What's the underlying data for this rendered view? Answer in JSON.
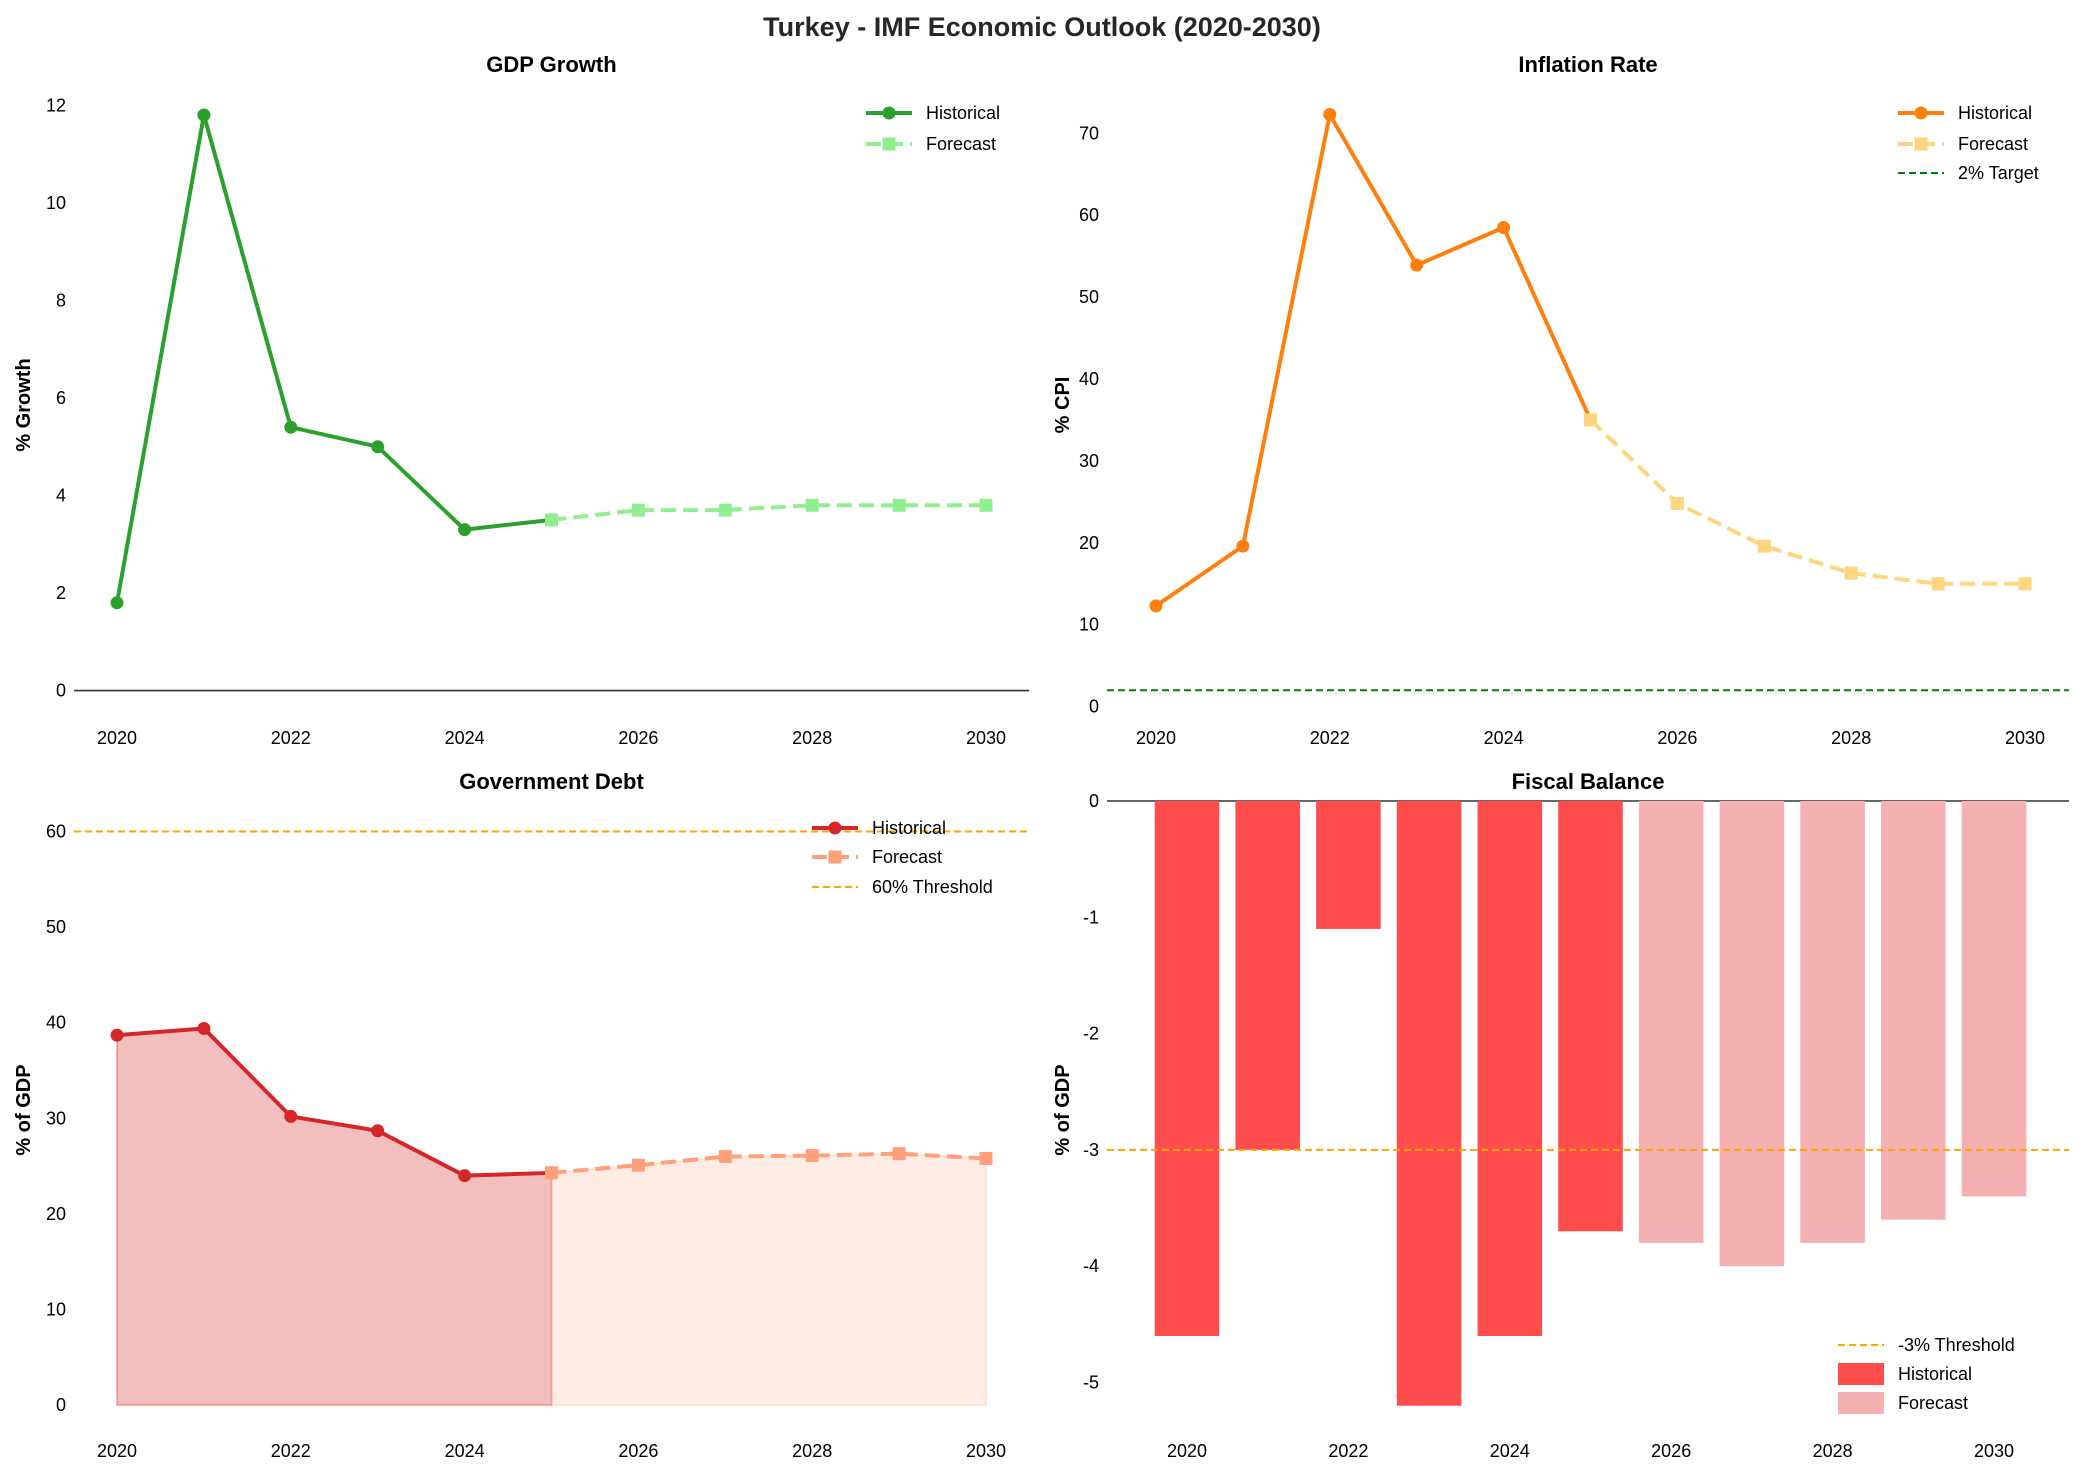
{
  "suptitle": "Turkey - IMF Economic Outlook (2020-2030)",
  "chart_data": [
    {
      "type": "line",
      "title": "GDP Growth",
      "xlabel": "",
      "ylabel": "% Growth",
      "xlim": [
        2019.5,
        2030.5
      ],
      "ylim": [
        -0.5,
        12.6
      ],
      "xticks": [
        2020,
        2022,
        2024,
        2026,
        2028,
        2030
      ],
      "yticks": [
        0,
        2,
        4,
        6,
        8,
        10,
        12
      ],
      "grid": false,
      "legend": "top-right",
      "zero_line": true,
      "series": [
        {
          "name": "Historical",
          "style": "solid-circle",
          "color": "#2ca02c",
          "x": [
            2020,
            2021,
            2022,
            2023,
            2024,
            2025
          ],
          "values": [
            1.8,
            11.8,
            5.4,
            5.0,
            3.3,
            3.5
          ]
        },
        {
          "name": "Forecast",
          "style": "dashed-square",
          "color": "#90ee90",
          "x": [
            2025,
            2026,
            2027,
            2028,
            2029,
            2030
          ],
          "values": [
            3.5,
            3.7,
            3.7,
            3.8,
            3.8,
            3.8
          ]
        }
      ],
      "reference_lines": []
    },
    {
      "type": "line",
      "title": "Inflation Rate",
      "xlabel": "",
      "ylabel": "% CPI",
      "xlim": [
        2019.5,
        2030.5
      ],
      "ylim": [
        -2,
        77
      ],
      "xticks": [
        2020,
        2022,
        2024,
        2026,
        2028,
        2030
      ],
      "yticks": [
        0,
        10,
        20,
        30,
        40,
        50,
        60,
        70
      ],
      "grid": false,
      "legend": "top-right",
      "zero_line": false,
      "series": [
        {
          "name": "Historical",
          "style": "solid-circle",
          "color": "#ff7f0e",
          "x": [
            2020,
            2021,
            2022,
            2023,
            2024,
            2025
          ],
          "values": [
            12.3,
            19.6,
            72.3,
            53.9,
            58.5,
            35.0
          ]
        },
        {
          "name": "Forecast",
          "style": "dashed-square",
          "color": "#ffd580",
          "x": [
            2025,
            2026,
            2027,
            2028,
            2029,
            2030
          ],
          "values": [
            35.0,
            24.8,
            19.6,
            16.3,
            15.0,
            15.0
          ]
        }
      ],
      "reference_lines": [
        {
          "name": "2% Target",
          "value": 2,
          "color": "#008000"
        }
      ]
    },
    {
      "type": "area",
      "title": "Government Debt",
      "xlabel": "",
      "ylabel": "% of GDP",
      "xlim": [
        2019.5,
        2030.5
      ],
      "ylim": [
        -2.5,
        63.3
      ],
      "xticks": [
        2020,
        2022,
        2024,
        2026,
        2028,
        2030
      ],
      "yticks": [
        0,
        10,
        20,
        30,
        40,
        50,
        60
      ],
      "grid": false,
      "legend": "top-right",
      "zero_line": false,
      "series": [
        {
          "name": "Historical",
          "style": "solid-circle",
          "color": "#d62728",
          "fill": "#d62728",
          "x": [
            2020,
            2021,
            2022,
            2023,
            2024,
            2025
          ],
          "values": [
            38.7,
            39.4,
            30.2,
            28.7,
            24.0,
            24.3
          ]
        },
        {
          "name": "Forecast",
          "style": "dashed-square",
          "color": "#ffa07a",
          "fill": "#ffa07a",
          "x": [
            2025,
            2026,
            2027,
            2028,
            2029,
            2030
          ],
          "values": [
            24.3,
            25.1,
            26.0,
            26.1,
            26.3,
            25.8
          ]
        }
      ],
      "reference_lines": [
        {
          "name": "60% Threshold",
          "value": 60,
          "color": "#ffa500"
        }
      ]
    },
    {
      "type": "bar",
      "title": "Fiscal Balance",
      "xlabel": "",
      "ylabel": "% of GDP",
      "xlim": [
        2019.5,
        2030.5
      ],
      "ylim": [
        -5.4,
        0
      ],
      "xticks": [
        2020,
        2022,
        2024,
        2026,
        2028,
        2030
      ],
      "yticks": [
        0,
        -1,
        -2,
        -3,
        -4,
        -5
      ],
      "grid": false,
      "legend": "bottom-right",
      "zero_line": true,
      "series": [
        {
          "name": "Historical",
          "color": "#ff4d4d",
          "x": [
            2020,
            2021,
            2022,
            2023,
            2024,
            2025
          ],
          "values": [
            -4.6,
            -3.0,
            -1.1,
            -5.2,
            -4.6,
            -3.7
          ]
        },
        {
          "name": "Forecast",
          "color": "#f5b1b1",
          "x": [
            2026,
            2027,
            2028,
            2029,
            2030
          ],
          "values": [
            -3.8,
            -4.0,
            -3.8,
            -3.6,
            -3.4
          ]
        }
      ],
      "reference_lines": [
        {
          "name": "-3% Threshold",
          "value": -3,
          "color": "#ffa500"
        }
      ]
    }
  ]
}
